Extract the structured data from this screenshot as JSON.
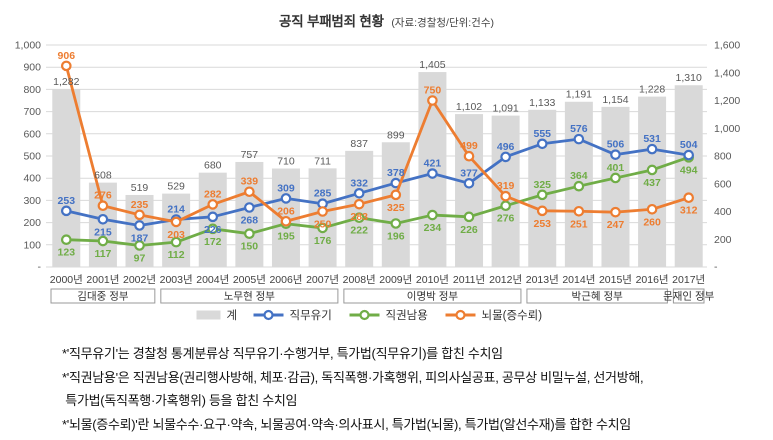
{
  "title": {
    "main": "공직 부패범죄 현황",
    "sub": "(자료:경찰청/단위:건수)"
  },
  "chart_data": {
    "type": "bar+line combo",
    "categories": [
      "2000년",
      "2001년",
      "2002년",
      "2003년",
      "2004년",
      "2005년",
      "2006년",
      "2007년",
      "2008년",
      "2009년",
      "2010년",
      "2011년",
      "2012년",
      "2013년",
      "2014년",
      "2015년",
      "2016년",
      "2017년"
    ],
    "series": [
      {
        "name": "계",
        "type": "bar",
        "axis": "right",
        "color": "#D9D9D9",
        "values": [
          1282,
          608,
          519,
          529,
          680,
          757,
          710,
          711,
          837,
          899,
          1405,
          1102,
          1091,
          1133,
          1191,
          1154,
          1228,
          1310
        ]
      },
      {
        "name": "직무유기",
        "type": "line",
        "axis": "left",
        "color": "#4472C4",
        "values": [
          253,
          215,
          187,
          214,
          226,
          268,
          309,
          285,
          332,
          378,
          421,
          377,
          496,
          555,
          576,
          506,
          531,
          504
        ]
      },
      {
        "name": "직권남용",
        "type": "line",
        "axis": "left",
        "color": "#70AD47",
        "values": [
          123,
          117,
          97,
          112,
          172,
          150,
          195,
          176,
          222,
          196,
          234,
          226,
          276,
          325,
          364,
          401,
          437,
          494
        ]
      },
      {
        "name": "뇌물(증수뢰)",
        "type": "line",
        "axis": "left",
        "color": "#ED7D31",
        "values": [
          906,
          276,
          235,
          203,
          282,
          339,
          206,
          250,
          283,
          325,
          750,
          499,
          319,
          253,
          251,
          247,
          260,
          312
        ]
      }
    ],
    "left_axis": {
      "min": 0,
      "max": 1000,
      "step": 100,
      "zero_label": "-"
    },
    "right_axis": {
      "min": 0,
      "max": 1600,
      "step": 200,
      "zero_label": "-"
    },
    "grid": true,
    "legend_position": "bottom",
    "legend": [
      {
        "label": "계",
        "swatch": "bar",
        "color": "#D9D9D9"
      },
      {
        "label": "직무유기",
        "swatch": "line",
        "color": "#4472C4"
      },
      {
        "label": "직권남용",
        "swatch": "line",
        "color": "#70AD47"
      },
      {
        "label": "뇌물(증수뢰)",
        "swatch": "line",
        "color": "#ED7D31"
      }
    ],
    "government_bands": [
      {
        "label": "김대중 정부",
        "from": 0,
        "to": 2
      },
      {
        "label": "노무현 정부",
        "from": 3,
        "to": 7
      },
      {
        "label": "이명박 정부",
        "from": 8,
        "to": 12
      },
      {
        "label": "박근혜 정부",
        "from": 13,
        "to": 16
      },
      {
        "label": "문재인 정부",
        "from": 17,
        "to": 17
      }
    ]
  },
  "colors": {
    "bar_label": "#595959",
    "axis_label": "#595959",
    "year_label": "#404040",
    "grid_line": "#D9D9D9",
    "band_border": "#999999",
    "band_text": "#333333",
    "legend_text": "#333333"
  },
  "footnotes": [
    "*'직무유기'는 경찰청 통계분류상 직무유기·수행거부, 특가법(직무유기)를 합친 수치임",
    "*'직권남용'은 직권남용(권리행사방해, 체포·감금), 독직폭행·가혹행위, 피의사실공표, 공무상 비밀누설, 선거방해,",
    " 특가법(독직폭행·가혹행위) 등을 합친 수치임",
    "*'뇌물(증수뢰)'란 뇌물수수·요구·약속, 뇌물공여·약속·의사표시, 특가법(뇌물), 특가법(알선수재)를 합한 수치임"
  ]
}
